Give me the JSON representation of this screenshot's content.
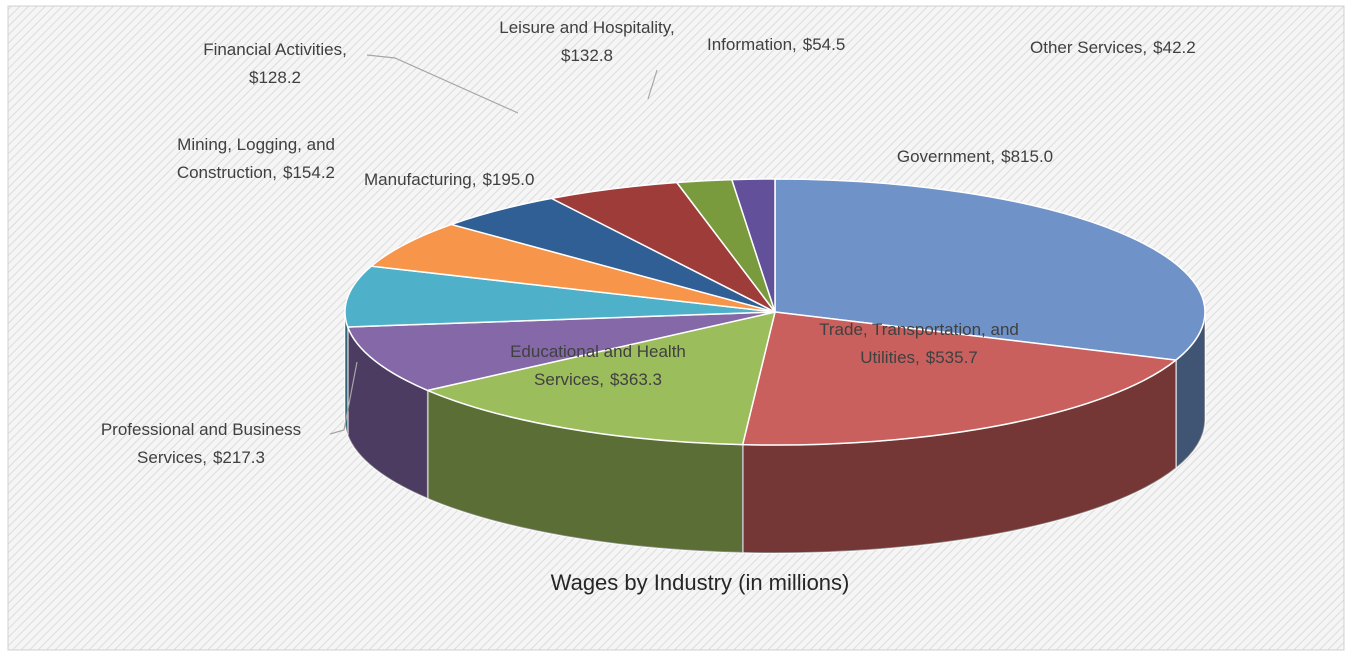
{
  "chart_data": {
    "type": "pie3d",
    "title": "Wages by Industry  (in millions)",
    "categories": [
      "Government,",
      "Trade, Transportation, and Utilities,",
      "Educational and Health Services,",
      "Professional and Business Services,",
      "Manufacturing,",
      "Mining, Logging, and Construction,",
      "Financial Activities,",
      "Leisure and Hospitality,",
      "Information,",
      "Other Services,"
    ],
    "values": [
      815.0,
      535.7,
      363.3,
      217.3,
      195.0,
      154.2,
      128.2,
      132.8,
      54.5,
      42.2
    ],
    "value_labels": [
      "$815.0",
      "$535.7",
      "$363.3",
      "$217.3",
      "$195.0",
      "$154.2",
      "$128.2",
      "$132.8",
      "$54.5",
      "$42.2"
    ],
    "colors": [
      "#6f93c8",
      "#c9605d",
      "#9cbd5c",
      "#8468a8",
      "#4fb0c9",
      "#f7964a",
      "#2f5f95",
      "#9e3c3a",
      "#7a9a3e",
      "#62509a"
    ]
  }
}
